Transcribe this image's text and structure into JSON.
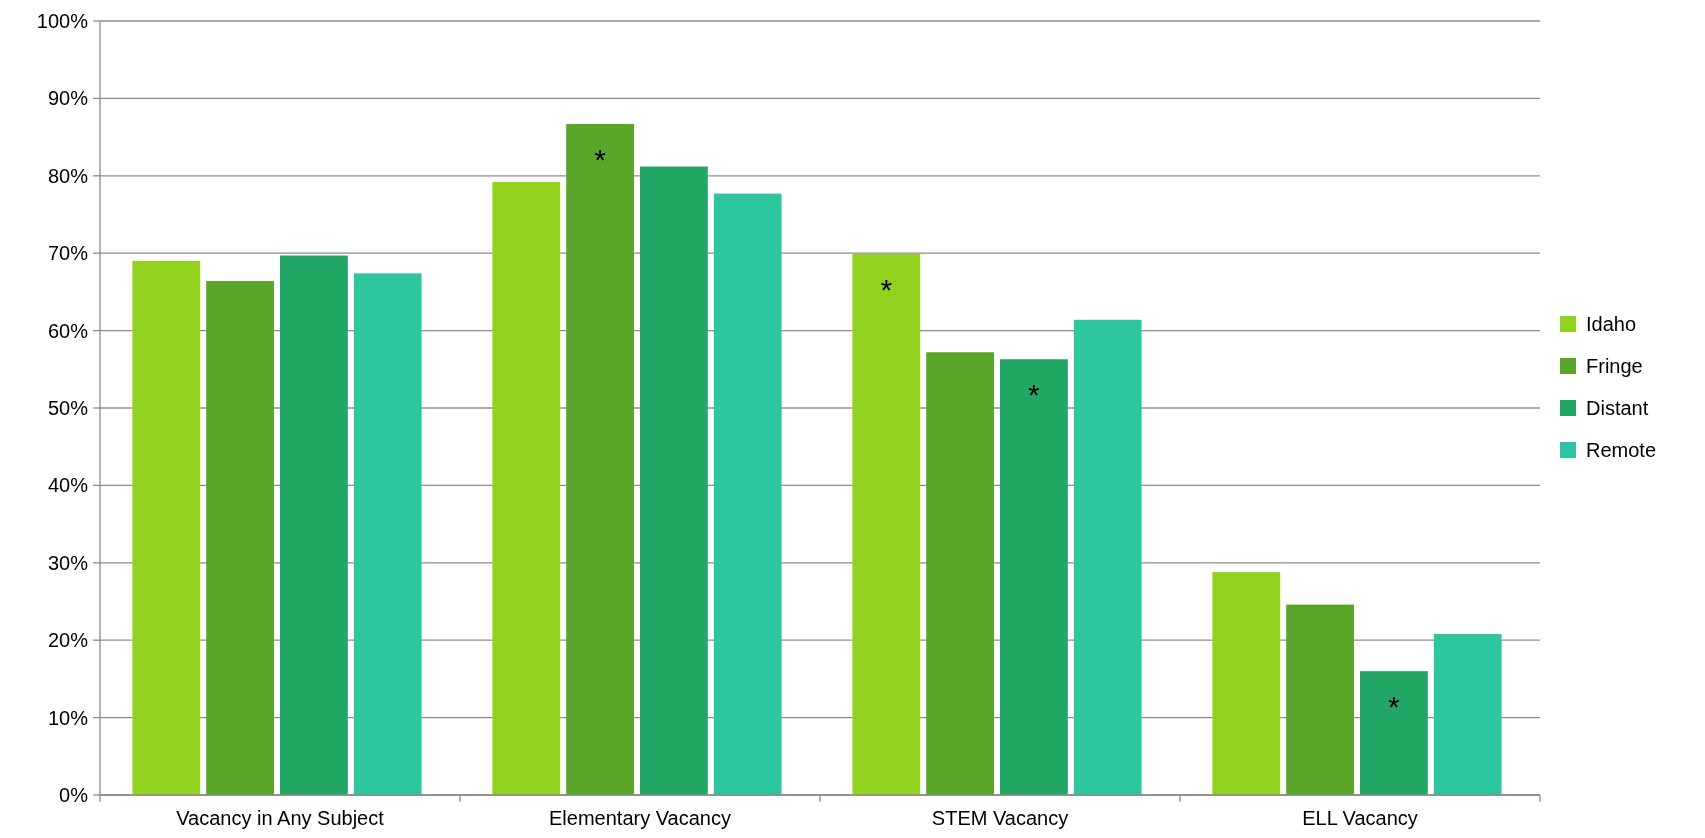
{
  "chart_data": {
    "type": "bar",
    "categories": [
      "Vacancy in Any Subject",
      "Elementary Vacancy",
      "STEM Vacancy",
      "ELL Vacancy"
    ],
    "series": [
      {
        "name": "Idaho",
        "color": "#93d11f",
        "values": [
          69.0,
          79.2,
          69.9,
          28.8
        ],
        "value_labels": [
          null,
          null,
          "*",
          null
        ]
      },
      {
        "name": "Fringe",
        "color": "#5aa62a",
        "values": [
          66.4,
          86.7,
          57.2,
          24.6
        ],
        "value_labels": [
          null,
          "*",
          null,
          null
        ]
      },
      {
        "name": "Distant",
        "color": "#22a765",
        "values": [
          69.7,
          81.2,
          56.3,
          16.0
        ],
        "value_labels": [
          null,
          null,
          "*",
          "*"
        ]
      },
      {
        "name": "Remote",
        "color": "#2ec6a0",
        "values": [
          67.4,
          77.7,
          61.4,
          20.8
        ]
      }
    ],
    "ylim": [
      0,
      100
    ],
    "yticks": [
      {
        "value": 0,
        "label": "0%"
      },
      {
        "value": 10,
        "label": "10%"
      },
      {
        "value": 20,
        "label": "20%"
      },
      {
        "value": 30,
        "label": "30%"
      },
      {
        "value": 40,
        "label": "40%"
      },
      {
        "value": 50,
        "label": "50%"
      },
      {
        "value": 60,
        "label": "60%"
      },
      {
        "value": 70,
        "label": "70%"
      },
      {
        "value": 80,
        "label": "80%"
      },
      {
        "value": 90,
        "label": "90%"
      },
      {
        "value": 100,
        "label": "100%"
      }
    ],
    "grid": "y",
    "legend": "right"
  }
}
